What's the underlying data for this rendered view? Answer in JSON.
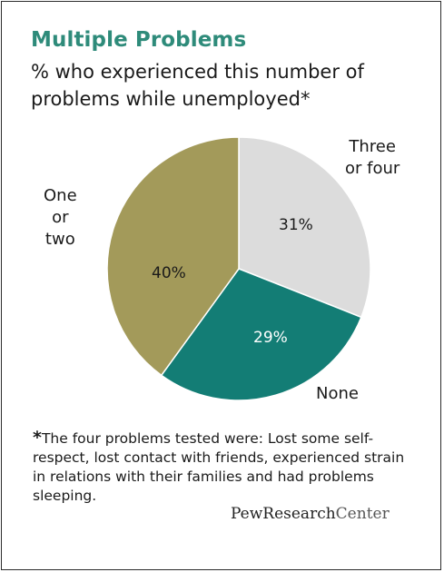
{
  "title": "Multiple Problems",
  "subtitle": "% who experienced this number of problems while unemployed*",
  "chart_data": {
    "type": "pie",
    "start_angle_deg": 0,
    "direction": "clockwise",
    "slices": [
      {
        "label": "Three or four",
        "label_lines": [
          "Three",
          "or four"
        ],
        "value": 31,
        "display": "31%",
        "color": "#dcdcdc",
        "text_color": "#1a1a1a"
      },
      {
        "label": "None",
        "label_lines": [
          "None"
        ],
        "value": 29,
        "display": "29%",
        "color": "#137d75",
        "text_color": "#ffffff"
      },
      {
        "label": "One or two",
        "label_lines": [
          "One",
          "or",
          "two"
        ],
        "value": 40,
        "display": "40%",
        "color": "#a39a5a",
        "text_color": "#1a1a1a"
      }
    ]
  },
  "footnote": {
    "marker": "*",
    "text": "The four problems tested were: Lost some self-respect, lost contact with friends, experienced strain in relations with their families and had problems sleeping."
  },
  "logo": {
    "bold": "PewResearch",
    "thin": "Center"
  }
}
